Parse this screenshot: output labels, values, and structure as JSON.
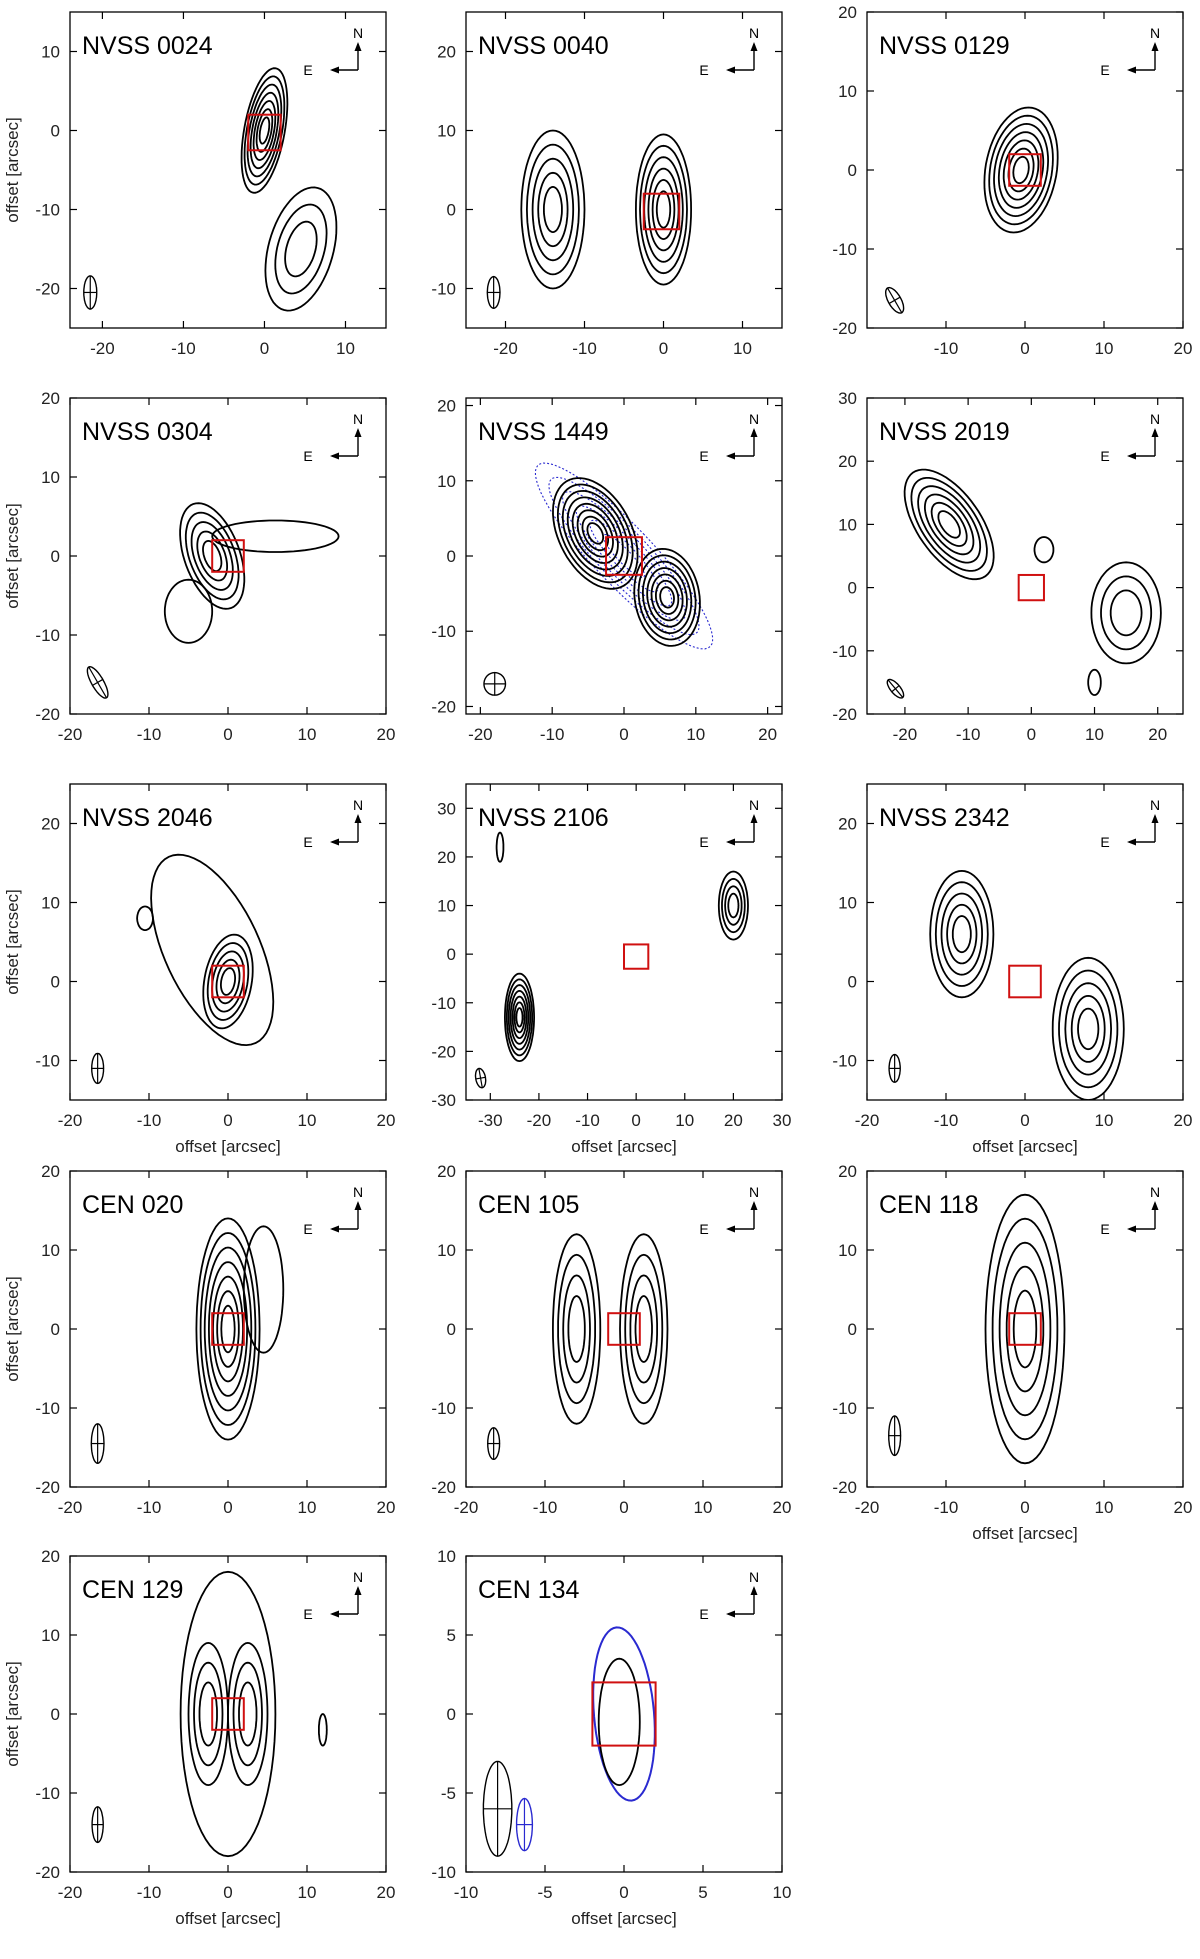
{
  "figure": {
    "axis_label": "offset [arcsec]",
    "compass": {
      "north": "N",
      "east": "E"
    },
    "colors": {
      "contour": "#000000",
      "marker": "#d01010",
      "overlay": "#2a2ad0",
      "axes": "#000000"
    }
  },
  "chart_data": [
    {
      "type": "contour",
      "title": "NVSS 0024",
      "xlim": [
        -24,
        15
      ],
      "ylim": [
        -25,
        15
      ],
      "xticks": [
        -20,
        -10,
        0,
        10
      ],
      "yticks": [
        -20,
        -10,
        0,
        10
      ],
      "xlabel": "",
      "ylabel": "offset [arcsec]",
      "show_x_ticklabels": true,
      "marker_box": {
        "x": [
          -2,
          2
        ],
        "y": [
          -2.5,
          2
        ]
      },
      "beam": {
        "x": -21.5,
        "y": -20.5,
        "major": 4.2,
        "minor": 1.6,
        "pa": 0
      },
      "components": [
        {
          "x": 0,
          "y": 0,
          "a": 2.5,
          "b": 8,
          "pa": -10,
          "levels": 7
        },
        {
          "x": 4.5,
          "y": -15,
          "a": 4,
          "b": 8,
          "pa": -15,
          "levels": 3
        }
      ]
    },
    {
      "type": "contour",
      "title": "NVSS 0040",
      "xlim": [
        -25,
        15
      ],
      "ylim": [
        -15,
        25
      ],
      "xticks": [
        -20,
        -10,
        0,
        10
      ],
      "yticks": [
        -10,
        0,
        10,
        20
      ],
      "xlabel": "",
      "ylabel": "",
      "show_x_ticklabels": true,
      "marker_box": {
        "x": [
          -2.5,
          2
        ],
        "y": [
          -2.5,
          2
        ]
      },
      "beam": {
        "x": -21.5,
        "y": -10.5,
        "major": 4,
        "minor": 1.6,
        "pa": 0
      },
      "components": [
        {
          "x": -14,
          "y": 0,
          "a": 4,
          "b": 10,
          "pa": 0,
          "levels": 5
        },
        {
          "x": 0,
          "y": 0,
          "a": 3.5,
          "b": 9.5,
          "pa": 0,
          "levels": 6
        }
      ]
    },
    {
      "type": "contour",
      "title": "NVSS 0129",
      "xlim": [
        -20,
        20
      ],
      "ylim": [
        -20,
        20
      ],
      "xticks": [
        -10,
        0,
        10,
        20
      ],
      "yticks": [
        -20,
        -10,
        0,
        10,
        20
      ],
      "xlabel": "",
      "ylabel": "",
      "show_x_ticklabels": true,
      "marker_box": {
        "x": [
          -2,
          2
        ],
        "y": [
          -2,
          2
        ]
      },
      "beam": {
        "x": -16.5,
        "y": -16.5,
        "major": 3.6,
        "minor": 1.6,
        "pa": 30
      },
      "components": [
        {
          "x": -0.5,
          "y": 0,
          "a": 4.5,
          "b": 8,
          "pa": -10,
          "levels": 7
        }
      ]
    },
    {
      "type": "contour",
      "title": "NVSS 0304",
      "xlim": [
        -20,
        20
      ],
      "ylim": [
        -20,
        20
      ],
      "xticks": [
        -20,
        -10,
        0,
        10,
        20
      ],
      "yticks": [
        -20,
        -10,
        0,
        10,
        20
      ],
      "xlabel": "",
      "ylabel": "offset [arcsec]",
      "show_x_ticklabels": true,
      "marker_box": {
        "x": [
          -2,
          2
        ],
        "y": [
          -2,
          2
        ]
      },
      "beam": {
        "x": -16.5,
        "y": -16,
        "major": 4.5,
        "minor": 1.5,
        "pa": 30
      },
      "components": [
        {
          "x": -2,
          "y": 0,
          "a": 3.5,
          "b": 7,
          "pa": 20,
          "levels": 5
        },
        {
          "x": 6,
          "y": 2.5,
          "a": 8,
          "b": 2,
          "pa": 0,
          "levels": 1
        },
        {
          "x": -5,
          "y": -7,
          "a": 3,
          "b": 4,
          "pa": 0,
          "levels": 1
        }
      ]
    },
    {
      "type": "contour",
      "title": "NVSS 1449",
      "xlim": [
        -22,
        22
      ],
      "ylim": [
        -21,
        21
      ],
      "xticks": [
        -20,
        -10,
        0,
        10,
        20
      ],
      "yticks": [
        -20,
        -10,
        0,
        10,
        20
      ],
      "xlabel": "",
      "ylabel": "",
      "show_x_ticklabels": true,
      "marker_box": {
        "x": [
          -2.5,
          2.5
        ],
        "y": [
          -2.5,
          2.5
        ]
      },
      "beam": {
        "x": -18,
        "y": -17,
        "major": 3,
        "minor": 3,
        "pa": 0
      },
      "overlay": {
        "x": 0,
        "y": 0,
        "a": 4,
        "b": 17,
        "pa": 45,
        "levels": 6
      },
      "components": [
        {
          "x": -4,
          "y": 3,
          "a": 5,
          "b": 8,
          "pa": 30,
          "levels": 8
        },
        {
          "x": 6,
          "y": -5.5,
          "a": 4.5,
          "b": 6.5,
          "pa": 10,
          "levels": 7
        }
      ]
    },
    {
      "type": "contour",
      "title": "NVSS 2019",
      "xlim": [
        -26,
        24
      ],
      "ylim": [
        -20,
        30
      ],
      "xticks": [
        -20,
        -10,
        0,
        10,
        20
      ],
      "yticks": [
        -20,
        -10,
        0,
        10,
        20,
        30
      ],
      "xlabel": "",
      "ylabel": "",
      "show_x_ticklabels": true,
      "marker_box": {
        "x": [
          -2,
          2
        ],
        "y": [
          -2,
          2
        ]
      },
      "beam": {
        "x": -21.5,
        "y": -16,
        "major": 3.6,
        "minor": 1.5,
        "pa": 40
      },
      "components": [
        {
          "x": -13,
          "y": 10,
          "a": 5,
          "b": 10,
          "pa": 35,
          "levels": 6
        },
        {
          "x": 15,
          "y": -4,
          "a": 5.5,
          "b": 8,
          "pa": 0,
          "levels": 3
        },
        {
          "x": 10,
          "y": -15,
          "a": 1,
          "b": 2,
          "pa": 0,
          "levels": 1
        },
        {
          "x": 2,
          "y": 6,
          "a": 1.5,
          "b": 2,
          "pa": 0,
          "levels": 1
        }
      ]
    },
    {
      "type": "contour",
      "title": "NVSS 2046",
      "xlim": [
        -20,
        20
      ],
      "ylim": [
        -15,
        25
      ],
      "xticks": [
        -20,
        -10,
        0,
        10,
        20
      ],
      "yticks": [
        -10,
        0,
        10,
        20
      ],
      "xlabel": "offset [arcsec]",
      "ylabel": "offset [arcsec]",
      "show_x_ticklabels": true,
      "marker_box": {
        "x": [
          -2,
          2
        ],
        "y": [
          -2,
          2
        ]
      },
      "beam": {
        "x": -16.5,
        "y": -11,
        "major": 3.8,
        "minor": 1.5,
        "pa": 0
      },
      "components": [
        {
          "x": 0,
          "y": 0,
          "a": 3,
          "b": 6,
          "pa": -10,
          "levels": 5
        },
        {
          "x": -2,
          "y": 4,
          "a": 6,
          "b": 13,
          "pa": 25,
          "levels": 1
        },
        {
          "x": -10.5,
          "y": 8,
          "a": 1,
          "b": 1.5,
          "pa": 0,
          "levels": 1
        }
      ]
    },
    {
      "type": "contour",
      "title": "NVSS 2106",
      "xlim": [
        -35,
        30
      ],
      "ylim": [
        -30,
        35
      ],
      "xticks": [
        -30,
        -20,
        -10,
        0,
        10,
        20,
        30
      ],
      "yticks": [
        -30,
        -20,
        -10,
        0,
        10,
        20,
        30
      ],
      "xlabel": "offset [arcsec]",
      "ylabel": "",
      "show_x_ticklabels": true,
      "marker_box": {
        "x": [
          -2.5,
          2.5
        ],
        "y": [
          -3,
          2
        ]
      },
      "beam": {
        "x": -32,
        "y": -25.5,
        "major": 4,
        "minor": 2,
        "pa": 10
      },
      "components": [
        {
          "x": -24,
          "y": -13,
          "a": 3,
          "b": 9,
          "pa": 0,
          "levels": 7
        },
        {
          "x": 20,
          "y": 10,
          "a": 3,
          "b": 7,
          "pa": 0,
          "levels": 4
        },
        {
          "x": -28,
          "y": 22,
          "a": 0.7,
          "b": 3,
          "pa": 0,
          "levels": 1
        }
      ]
    },
    {
      "type": "contour",
      "title": "NVSS 2342",
      "xlim": [
        -20,
        20
      ],
      "ylim": [
        -15,
        25
      ],
      "xticks": [
        -20,
        -10,
        0,
        10,
        20
      ],
      "yticks": [
        -10,
        0,
        10,
        20
      ],
      "xlabel": "offset [arcsec]",
      "ylabel": "",
      "show_x_ticklabels": true,
      "marker_box": {
        "x": [
          -2,
          2
        ],
        "y": [
          -2,
          2
        ]
      },
      "beam": {
        "x": -16.5,
        "y": -11,
        "major": 3.5,
        "minor": 1.4,
        "pa": 0
      },
      "components": [
        {
          "x": -8,
          "y": 6,
          "a": 4,
          "b": 8,
          "pa": 0,
          "levels": 5
        },
        {
          "x": 8,
          "y": -6,
          "a": 4.5,
          "b": 9,
          "pa": 0,
          "levels": 5
        }
      ]
    },
    {
      "type": "contour",
      "title": "CEN 020",
      "xlim": [
        -20,
        20
      ],
      "ylim": [
        -20,
        20
      ],
      "xticks": [
        -20,
        -10,
        0,
        10,
        20
      ],
      "yticks": [
        -20,
        -10,
        0,
        10,
        20
      ],
      "xlabel": "",
      "ylabel": "offset [arcsec]",
      "show_x_ticklabels": true,
      "marker_box": {
        "x": [
          -2,
          2
        ],
        "y": [
          -2,
          2
        ]
      },
      "beam": {
        "x": -16.5,
        "y": -14.5,
        "major": 5,
        "minor": 1.6,
        "pa": 0
      },
      "components": [
        {
          "x": 0,
          "y": 0,
          "a": 4,
          "b": 14,
          "pa": 0,
          "levels": 7
        },
        {
          "x": 4.5,
          "y": 5,
          "a": 2.5,
          "b": 8,
          "pa": 0,
          "levels": 1
        }
      ]
    },
    {
      "type": "contour",
      "title": "CEN 105",
      "xlim": [
        -20,
        20
      ],
      "ylim": [
        -20,
        20
      ],
      "xticks": [
        -20,
        -10,
        0,
        10,
        20
      ],
      "yticks": [
        -20,
        -10,
        0,
        10,
        20
      ],
      "xlabel": "",
      "ylabel": "",
      "show_x_ticklabels": true,
      "marker_box": {
        "x": [
          -2,
          2
        ],
        "y": [
          -2,
          2
        ]
      },
      "beam": {
        "x": -16.5,
        "y": -14.5,
        "major": 4,
        "minor": 1.5,
        "pa": 0
      },
      "components": [
        {
          "x": -6,
          "y": 0,
          "a": 3,
          "b": 12,
          "pa": 0,
          "levels": 4
        },
        {
          "x": 2.5,
          "y": 0,
          "a": 3,
          "b": 12,
          "pa": 0,
          "levels": 4
        }
      ]
    },
    {
      "type": "contour",
      "title": "CEN 118",
      "xlim": [
        -20,
        20
      ],
      "ylim": [
        -20,
        20
      ],
      "xticks": [
        -20,
        -10,
        0,
        10,
        20
      ],
      "yticks": [
        -20,
        -10,
        0,
        10,
        20
      ],
      "xlabel": "offset [arcsec]",
      "ylabel": "",
      "show_x_ticklabels": true,
      "marker_box": {
        "x": [
          -2,
          2
        ],
        "y": [
          -2,
          2
        ]
      },
      "beam": {
        "x": -16.5,
        "y": -13.5,
        "major": 5,
        "minor": 1.5,
        "pa": 0
      },
      "components": [
        {
          "x": 0,
          "y": 0,
          "a": 5,
          "b": 17,
          "pa": 0,
          "levels": 5
        }
      ]
    },
    {
      "type": "contour",
      "title": "CEN 129",
      "xlim": [
        -20,
        20
      ],
      "ylim": [
        -20,
        20
      ],
      "xticks": [
        -20,
        -10,
        0,
        10,
        20
      ],
      "yticks": [
        -20,
        -10,
        0,
        10,
        20
      ],
      "xlabel": "offset [arcsec]",
      "ylabel": "offset [arcsec]",
      "show_x_ticklabels": true,
      "marker_box": {
        "x": [
          -2,
          2
        ],
        "y": [
          -2,
          2
        ]
      },
      "beam": {
        "x": -16.5,
        "y": -14,
        "major": 4.5,
        "minor": 1.4,
        "pa": 0
      },
      "components": [
        {
          "x": 0,
          "y": 0,
          "a": 6,
          "b": 18,
          "pa": 0,
          "levels": 1
        },
        {
          "x": -2.5,
          "y": 0,
          "a": 2.5,
          "b": 9,
          "pa": 0,
          "levels": 3
        },
        {
          "x": 2.5,
          "y": 0,
          "a": 2.5,
          "b": 9,
          "pa": 0,
          "levels": 3
        },
        {
          "x": 12,
          "y": -2,
          "a": 0.5,
          "b": 2,
          "pa": 0,
          "levels": 1
        }
      ]
    },
    {
      "type": "contour",
      "title": "CEN 134",
      "xlim": [
        -10,
        10
      ],
      "ylim": [
        -10,
        10
      ],
      "xticks": [
        -10,
        -5,
        0,
        5,
        10
      ],
      "yticks": [
        -10,
        -5,
        0,
        5,
        10
      ],
      "xlabel": "offset [arcsec]",
      "ylabel": "",
      "show_x_ticklabels": true,
      "marker_box": {
        "x": [
          -2,
          2
        ],
        "y": [
          -2,
          2
        ]
      },
      "beam": {
        "x": -8,
        "y": -6,
        "major": 6,
        "minor": 1.8,
        "pa": 0
      },
      "beam2": {
        "x": -6.3,
        "y": -7,
        "major": 3.3,
        "minor": 1,
        "pa": 0
      },
      "overlay": {
        "x": 0,
        "y": 0,
        "a": 1.9,
        "b": 5.5,
        "pa": 5,
        "levels": 1
      },
      "components": [
        {
          "x": -0.3,
          "y": -0.5,
          "a": 1.3,
          "b": 4,
          "pa": 0,
          "levels": 1
        }
      ]
    }
  ]
}
